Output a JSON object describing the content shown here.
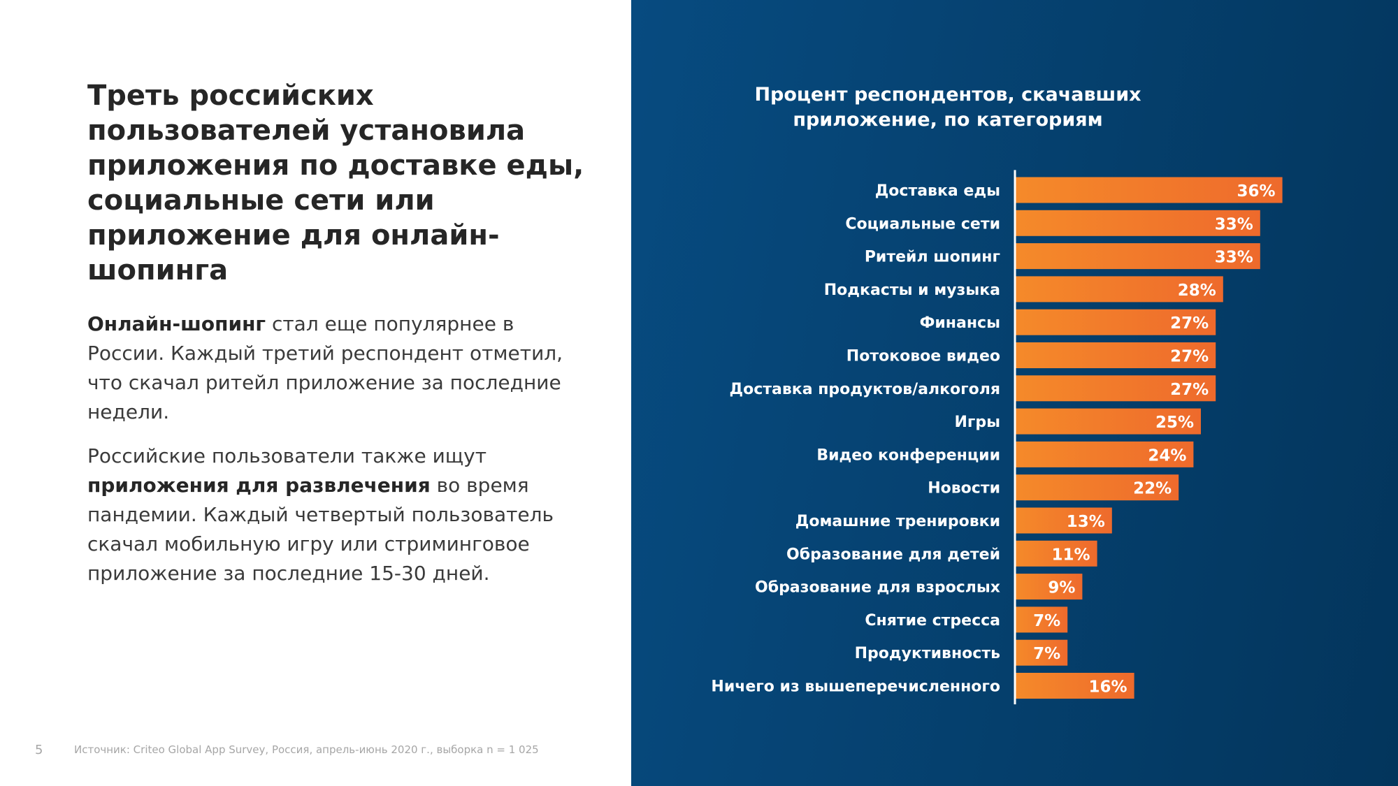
{
  "page": {
    "headline": "Треть российских пользователей установила приложения по доставке еды, социальные сети или приложение для онлайн-шопинга",
    "paragraph1": {
      "bold": "Онлайн-шопинг",
      "rest": " стал еще популярнее в России. Каждый третий респондент отметил, что скачал ритейл приложение за последние недели."
    },
    "paragraph2": {
      "pre": "Российские пользователи также ищут ",
      "bold": "приложения для развлечения",
      "rest": " во время пандемии. Каждый четвертый пользователь скачал мобильную игру или стриминговое приложение за последние 15-30 дней."
    },
    "page_number": "5",
    "source": "Источник: Criteo Global App Survey, Россия, апрель-июнь 2020 г., выборка n = 1 025"
  },
  "chart_data": {
    "type": "bar",
    "orientation": "horizontal",
    "title": "Процент респондентов, скачавших приложение, по категориям",
    "categories": [
      "Доставка еды",
      "Социальные сети",
      "Ритейл шопинг",
      "Подкасты и музыка",
      "Финансы",
      "Потоковое видео",
      "Доставка продуктов/алкоголя",
      "Игры",
      "Видео конференции",
      "Новости",
      "Домашние тренировки",
      "Образование для детей",
      "Образование для взрослых",
      "Снятие стресса",
      "Продуктивность",
      "Ничего из вышеперечисленного"
    ],
    "values": [
      36,
      33,
      33,
      28,
      27,
      27,
      27,
      25,
      24,
      22,
      13,
      11,
      9,
      7,
      7,
      16
    ],
    "data_labels": [
      "36%",
      "33%",
      "33%",
      "28%",
      "27%",
      "27%",
      "27%",
      "25%",
      "24%",
      "22%",
      "13%",
      "11%",
      "9%",
      "7%",
      "7%",
      "16%"
    ],
    "unit": "%",
    "grid": false,
    "legend": "none",
    "colors": {
      "bar_start": "#f58a2a",
      "bar_end": "#ee6a2c",
      "panel_bg": "#064678",
      "text": "#ffffff"
    }
  }
}
